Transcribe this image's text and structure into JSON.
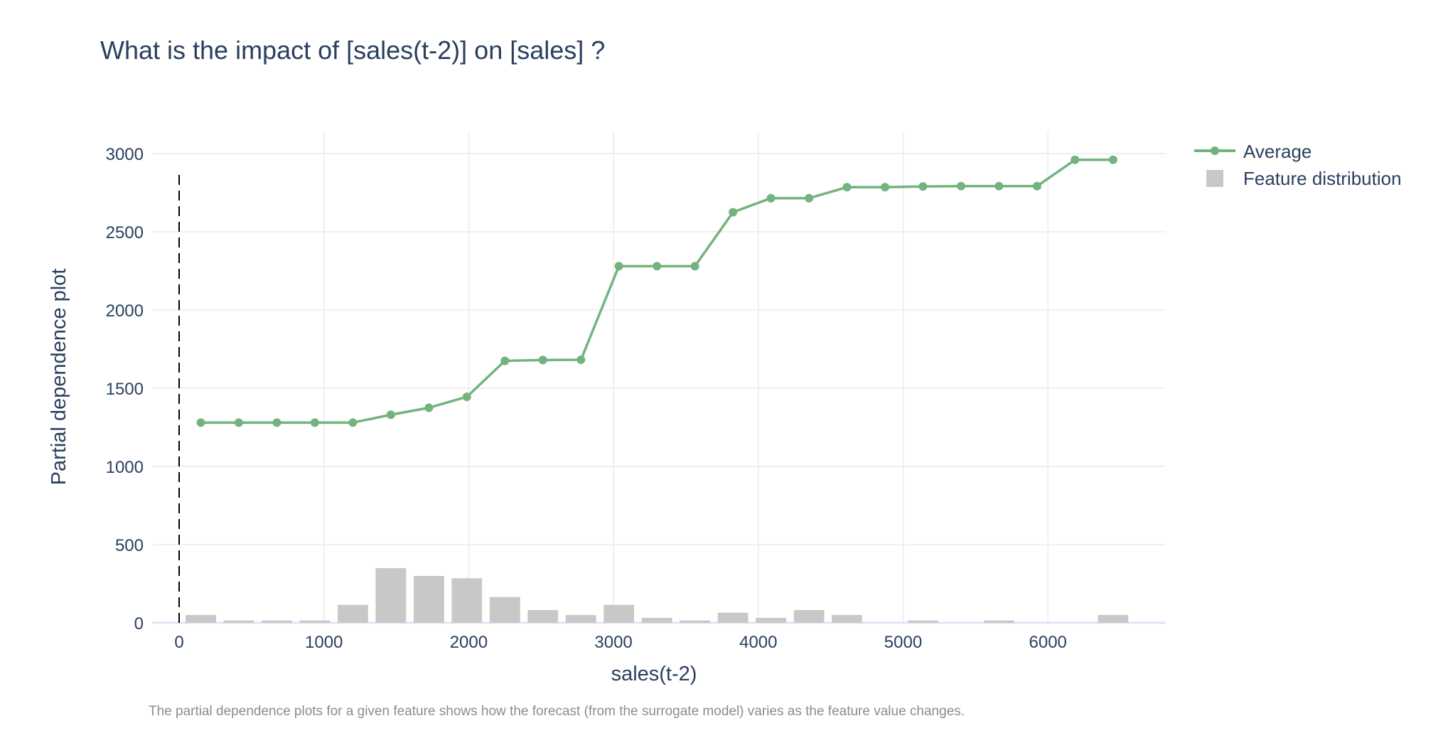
{
  "chart_data": {
    "type": "line",
    "title": "What is the impact of [sales(t-2)] on [sales] ?",
    "xlabel": "sales(t-2)",
    "ylabel": "Partial dependence plot",
    "xlim": [
      -240,
      6800
    ],
    "ylim": [
      0,
      3150
    ],
    "x_ticks": [
      0,
      1000,
      2000,
      3000,
      4000,
      5000,
      6000
    ],
    "x_tick_labels": [
      "0",
      "1000",
      "2000",
      "3000",
      "4000",
      "5000",
      "6000"
    ],
    "y_ticks": [
      0,
      500,
      1000,
      1500,
      2000,
      2500,
      3000
    ],
    "y_tick_labels": [
      "0",
      "500",
      "1000",
      "1500",
      "2000",
      "2500",
      "3000"
    ],
    "grid": true,
    "legend_position": "top-right",
    "reference_line": {
      "x": 0,
      "y_range": [
        0,
        2900
      ],
      "style": "dashed",
      "color": "#000000"
    },
    "series": [
      {
        "name": "Average",
        "type": "line",
        "color": "#72b37e",
        "x": [
          150,
          412,
          675,
          937,
          1200,
          1462,
          1725,
          1987,
          2250,
          2512,
          2775,
          3037,
          3300,
          3562,
          3825,
          4087,
          4350,
          4612,
          4875,
          5137,
          5400,
          5662,
          5925,
          6187,
          6450
        ],
        "y": [
          1280,
          1280,
          1280,
          1280,
          1280,
          1330,
          1375,
          1445,
          1675,
          1680,
          1682,
          2280,
          2280,
          2280,
          2625,
          2715,
          2715,
          2785,
          2785,
          2790,
          2792,
          2792,
          2792,
          2960,
          2960
        ]
      },
      {
        "name": "Feature distribution",
        "type": "bar",
        "color": "#c8c8c8",
        "x": [
          150,
          412,
          675,
          937,
          1200,
          1462,
          1725,
          1987,
          2250,
          2512,
          2775,
          3037,
          3300,
          3562,
          3825,
          4087,
          4350,
          4612,
          4875,
          5137,
          5400,
          5662,
          5925,
          6187,
          6450
        ],
        "y": [
          50,
          15,
          15,
          15,
          115,
          350,
          300,
          285,
          165,
          82,
          50,
          115,
          32,
          15,
          65,
          32,
          82,
          50,
          0,
          15,
          0,
          15,
          0,
          0,
          50
        ],
        "bar_width": 210
      }
    ],
    "caption": "The partial dependence plots for a given feature shows how the forecast  (from the surrogate model) varies as the feature value changes."
  }
}
